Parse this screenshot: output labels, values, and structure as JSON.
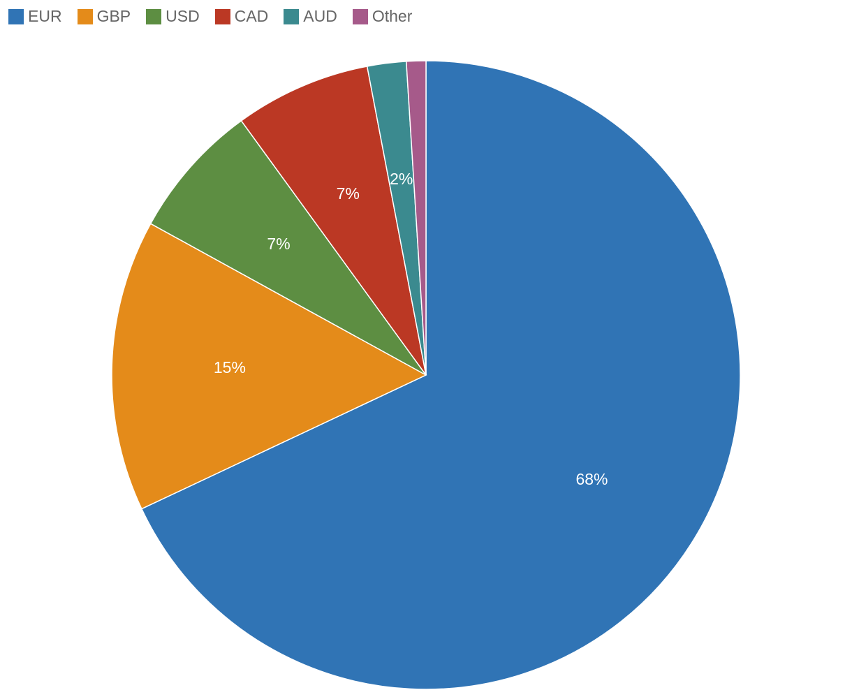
{
  "chart_data": {
    "type": "pie",
    "categories": [
      "EUR",
      "GBP",
      "USD",
      "CAD",
      "AUD",
      "Other"
    ],
    "values": [
      68,
      15,
      7,
      7,
      2,
      1
    ],
    "value_labels": [
      "68%",
      "15%",
      "7%",
      "7%",
      "2%",
      null
    ],
    "colors": [
      "#3074b5",
      "#e48b1a",
      "#5d8e42",
      "#bb3824",
      "#3b8a8f",
      "#a65a8a"
    ],
    "legend": "top-left"
  }
}
